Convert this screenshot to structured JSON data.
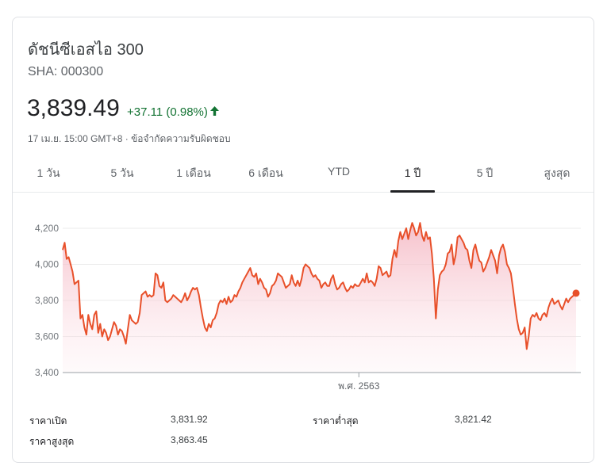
{
  "header": {
    "title": "ดัชนีซีเอสไอ 300",
    "ticker": "SHA: 000300",
    "price": "3,839.49",
    "change": "+37.11 (0.98%)",
    "meta": "17 เม.ย. 15:00 GMT+8 · ข้อจำกัดความรับผิดชอบ",
    "up_color": "#137333"
  },
  "tabs": [
    {
      "label": "1 วัน"
    },
    {
      "label": "5 วัน"
    },
    {
      "label": "1 เดือน"
    },
    {
      "label": "6 เดือน"
    },
    {
      "label": "YTD"
    },
    {
      "label": "1 ปี",
      "active": true
    },
    {
      "label": "5 ปี"
    },
    {
      "label": "สูงสุด"
    }
  ],
  "chart_data": {
    "type": "area",
    "title": "",
    "xlabel": "",
    "ylabel": "",
    "ylim": [
      3400,
      4200
    ],
    "yticks": [
      "4,200",
      "4,000",
      "3,800",
      "3,600",
      "3,400"
    ],
    "ytick_values": [
      4200,
      4000,
      3800,
      3600,
      3400
    ],
    "xtick_label": "พ.ศ. 2563",
    "xtick_index": 150,
    "line_color": "#e8502a",
    "grid": true,
    "series": [
      {
        "values": [
          4080,
          4120,
          4030,
          4040,
          4000,
          3960,
          3890,
          3900,
          3910,
          3700,
          3720,
          3650,
          3610,
          3720,
          3670,
          3640,
          3720,
          3740,
          3620,
          3670,
          3600,
          3640,
          3620,
          3580,
          3600,
          3640,
          3680,
          3660,
          3610,
          3640,
          3630,
          3600,
          3560,
          3640,
          3720,
          3690,
          3680,
          3670,
          3680,
          3730,
          3830,
          3840,
          3850,
          3820,
          3830,
          3820,
          3830,
          3950,
          3940,
          3880,
          3870,
          3900,
          3800,
          3790,
          3800,
          3810,
          3830,
          3820,
          3810,
          3800,
          3790,
          3810,
          3840,
          3800,
          3820,
          3850,
          3870,
          3860,
          3870,
          3830,
          3760,
          3700,
          3650,
          3630,
          3670,
          3650,
          3690,
          3700,
          3730,
          3780,
          3800,
          3790,
          3810,
          3780,
          3820,
          3790,
          3800,
          3830,
          3820,
          3850,
          3870,
          3900,
          3920,
          3940,
          3960,
          3980,
          3940,
          3930,
          3950,
          3890,
          3920,
          3900,
          3870,
          3860,
          3820,
          3840,
          3880,
          3890,
          3910,
          3950,
          3940,
          3930,
          3900,
          3870,
          3880,
          3890,
          3940,
          3900,
          3880,
          3910,
          3880,
          3920,
          3980,
          4000,
          3990,
          3980,
          3950,
          3930,
          3940,
          3920,
          3910,
          3870,
          3890,
          3900,
          3880,
          3880,
          3920,
          3940,
          3890,
          3860,
          3870,
          3890,
          3900,
          3870,
          3850,
          3860,
          3880,
          3870,
          3890,
          3880,
          3880,
          3900,
          3920,
          3900,
          3950,
          3900,
          3910,
          3900,
          3880,
          3920,
          3990,
          3980,
          3940,
          3950,
          3960,
          3930,
          3940,
          4030,
          4080,
          4040,
          4130,
          4180,
          4140,
          4170,
          4200,
          4140,
          4190,
          4230,
          4200,
          4160,
          4180,
          4230,
          4160,
          4130,
          4180,
          4140,
          4150,
          4060,
          3920,
          3700,
          3860,
          3940,
          3960,
          3970,
          4000,
          4060,
          4070,
          4110,
          4000,
          4050,
          4150,
          4160,
          4140,
          4120,
          4090,
          4080,
          4020,
          3980,
          4080,
          4110,
          4060,
          4020,
          4010,
          3960,
          3980,
          4010,
          4040,
          4080,
          4050,
          4020,
          3950,
          4050,
          4090,
          4110,
          4070,
          4000,
          3980,
          3950,
          3870,
          3780,
          3700,
          3640,
          3610,
          3620,
          3650,
          3530,
          3600,
          3700,
          3720,
          3710,
          3730,
          3700,
          3690,
          3720,
          3730,
          3710,
          3760,
          3790,
          3810,
          3780,
          3790,
          3800,
          3770,
          3750,
          3780,
          3810,
          3790,
          3810,
          3820,
          3830,
          3840
        ]
      }
    ]
  },
  "stats": [
    {
      "label": "ราคาเปิด",
      "value": "3,831.92"
    },
    {
      "label": "ราคาสูงสุด",
      "value": "3,863.45"
    },
    {
      "label": "ราคาต่ำสุด",
      "value": "3,821.42"
    }
  ]
}
